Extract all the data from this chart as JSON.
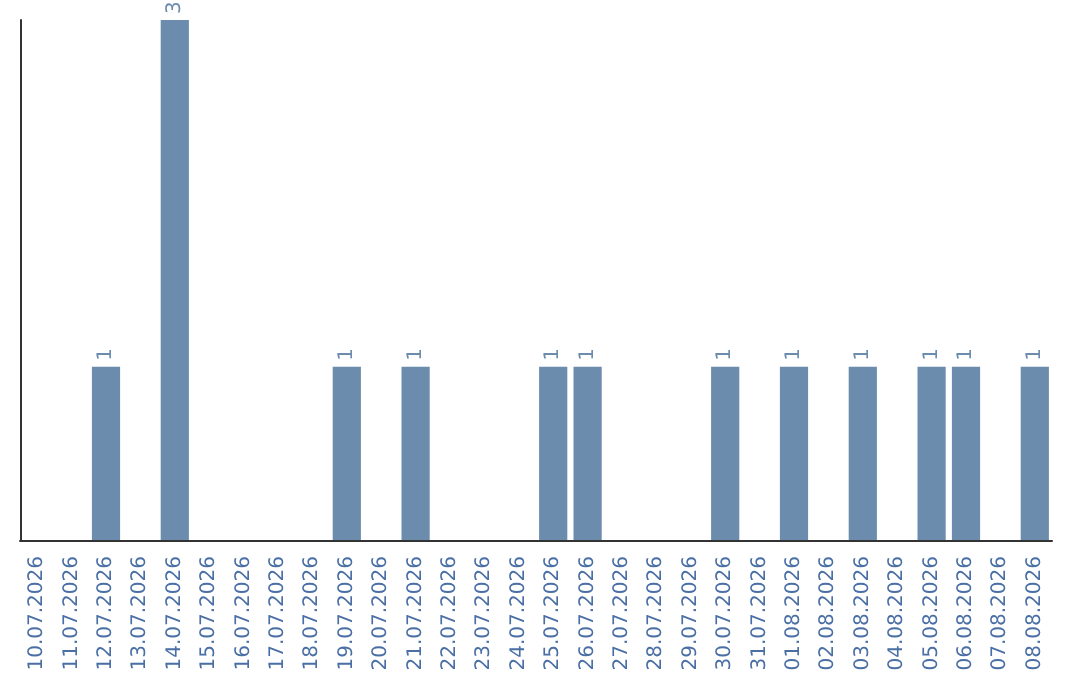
{
  "chart_data": {
    "type": "bar",
    "categories": [
      "10.07.2026",
      "11.07.2026",
      "12.07.2026",
      "13.07.2026",
      "14.07.2026",
      "15.07.2026",
      "16.07.2026",
      "17.07.2026",
      "18.07.2026",
      "19.07.2026",
      "20.07.2026",
      "21.07.2026",
      "22.07.2026",
      "23.07.2026",
      "24.07.2026",
      "25.07.2026",
      "26.07.2026",
      "27.07.2026",
      "28.07.2026",
      "29.07.2026",
      "30.07.2026",
      "31.07.2026",
      "01.08.2026",
      "02.08.2026",
      "03.08.2026",
      "04.08.2026",
      "05.08.2026",
      "06.08.2026",
      "07.08.2026",
      "08.08.2026"
    ],
    "values": [
      0,
      0,
      1,
      0,
      3,
      0,
      0,
      0,
      0,
      1,
      0,
      1,
      0,
      0,
      0,
      1,
      1,
      0,
      0,
      0,
      1,
      0,
      1,
      0,
      1,
      0,
      1,
      1,
      0,
      1
    ],
    "value_labels": [
      null,
      null,
      "1",
      null,
      "3",
      null,
      null,
      null,
      null,
      "1",
      null,
      "1",
      null,
      null,
      null,
      "1",
      "1",
      null,
      null,
      null,
      "1",
      null,
      "1",
      null,
      "1",
      null,
      "1",
      "1",
      null,
      "1"
    ],
    "color": "#6b8cad"
  }
}
